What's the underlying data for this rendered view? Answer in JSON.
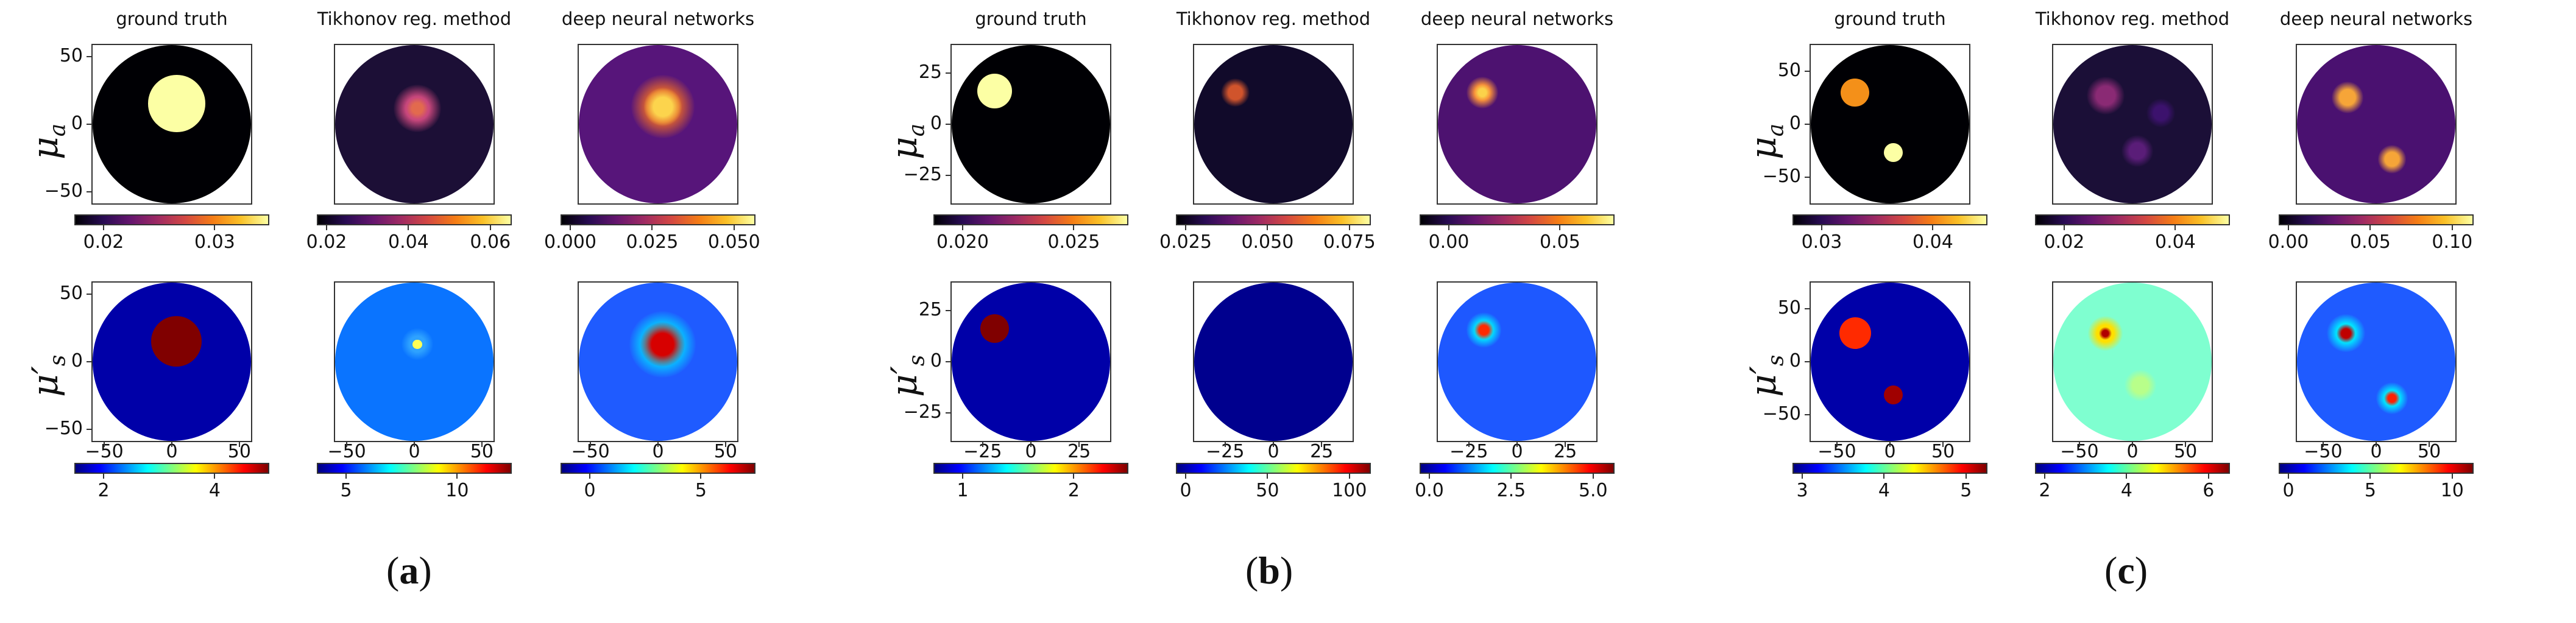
{
  "column_titles": [
    "ground truth",
    "Tikhonov reg. method",
    "deep neural networks"
  ],
  "row_labels": {
    "mua": {
      "symbol": "μ",
      "sub": "a"
    },
    "mus": {
      "symbol": "μ′",
      "sub": "s"
    }
  },
  "colors": {
    "jet_low": "#00007f",
    "jet_high": "#7f0000",
    "inferno_low": "#000004",
    "inferno_high": "#fcffa4"
  },
  "panels": [
    {
      "label": "a",
      "mua_yticks": [
        "50",
        "0",
        "−50"
      ],
      "mus_yticks": [
        "50",
        "0",
        "−50"
      ],
      "xticks": [
        "−50",
        "0",
        "50"
      ],
      "mua_colorbars": [
        [
          "0.02",
          "0.03"
        ],
        [
          "0.02",
          "0.04",
          "0.06"
        ],
        [
          "0.000",
          "0.025",
          "0.050"
        ]
      ],
      "mus_colorbars": [
        [
          "2",
          "4"
        ],
        [
          "5",
          "10"
        ],
        [
          "0",
          "5"
        ]
      ]
    },
    {
      "label": "b",
      "mua_yticks": [
        "25",
        "0",
        "−25"
      ],
      "mus_yticks": [
        "25",
        "0",
        "−25"
      ],
      "xticks": [
        "−25",
        "0",
        "25"
      ],
      "mua_colorbars": [
        [
          "0.020",
          "0.025"
        ],
        [
          "0.025",
          "0.050",
          "0.075"
        ],
        [
          "0.00",
          "0.05"
        ]
      ],
      "mus_colorbars": [
        [
          "1",
          "2"
        ],
        [
          "0",
          "50",
          "100"
        ],
        [
          "0.0",
          "2.5",
          "5.0"
        ]
      ]
    },
    {
      "label": "c",
      "mua_yticks": [
        "50",
        "0",
        "−50"
      ],
      "mus_yticks": [
        "50",
        "0",
        "−50"
      ],
      "xticks": [
        "−50",
        "0",
        "50"
      ],
      "mua_colorbars": [
        [
          "0.03",
          "0.04"
        ],
        [
          "0.02",
          "0.04"
        ],
        [
          "0.00",
          "0.05",
          "0.10"
        ]
      ],
      "mus_colorbars": [
        [
          "3",
          "4",
          "5"
        ],
        [
          "2",
          "4",
          "6"
        ],
        [
          "0",
          "5",
          "10"
        ]
      ]
    }
  ]
}
